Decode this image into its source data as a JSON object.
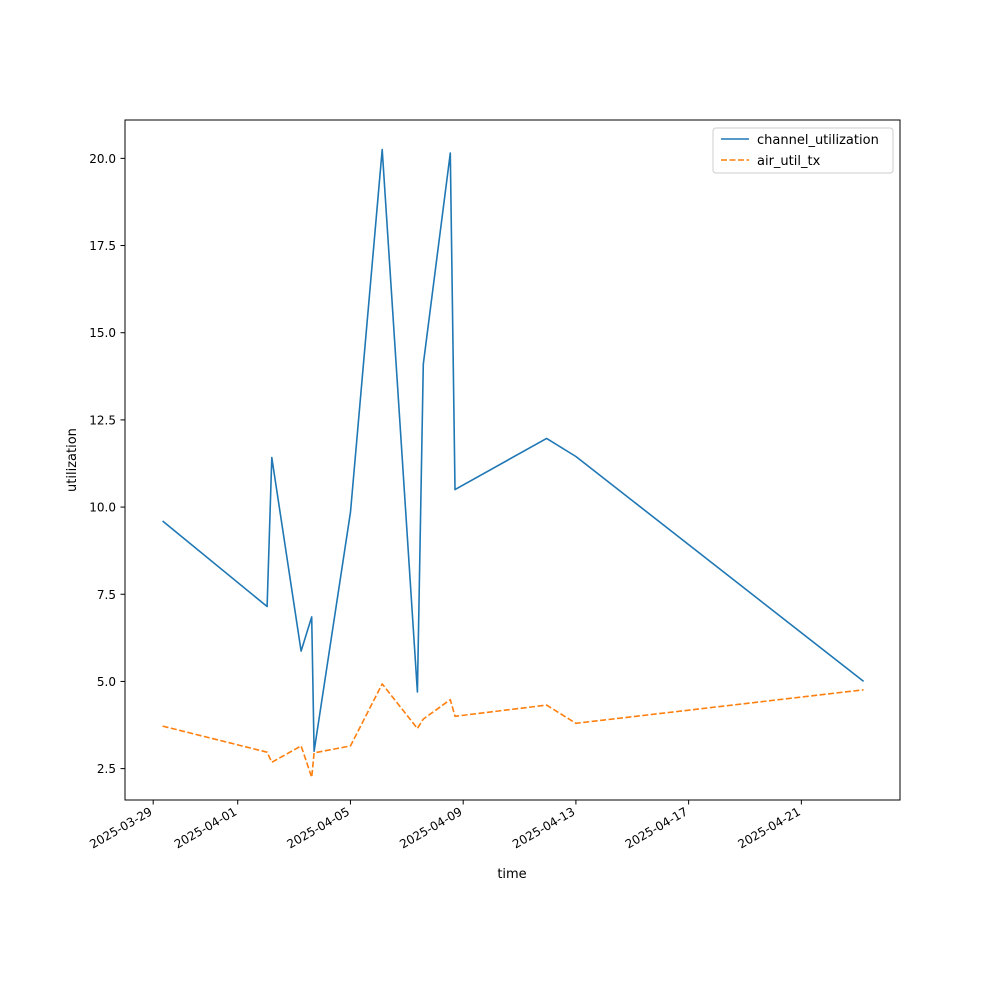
{
  "chart_data": {
    "type": "line",
    "title": "",
    "xlabel": "time",
    "ylabel": "utilization",
    "x_ticks": [
      "2025-03-29",
      "2025-04-01",
      "2025-04-05",
      "2025-04-09",
      "2025-04-13",
      "2025-04-17",
      "2025-04-21"
    ],
    "y_ticks": [
      "2.5",
      "5.0",
      "7.5",
      "10.0",
      "12.5",
      "15.0",
      "17.5",
      "20.0"
    ],
    "xlim": [
      "2025-03-28T00:00",
      "2025-04-24T12:00"
    ],
    "ylim": [
      1.6,
      21.1
    ],
    "grid": false,
    "legend": "top-right",
    "x": [
      "2025-03-29T08:00",
      "2025-04-02T01:00",
      "2025-04-02T05:00",
      "2025-04-03T06:00",
      "2025-04-03T15:00",
      "2025-04-03T17:00",
      "2025-04-05T00:00",
      "2025-04-06T03:00",
      "2025-04-07T09:00",
      "2025-04-07T14:00",
      "2025-04-08T13:00",
      "2025-04-08T17:00",
      "2025-04-11T23:00",
      "2025-04-13T00:00",
      "2025-04-23T05:00"
    ],
    "series": [
      {
        "name": "channel_utilization",
        "color": "#1f77b4",
        "style": "solid",
        "values": [
          9.6,
          7.15,
          11.42,
          5.87,
          6.85,
          3.0,
          9.86,
          20.25,
          4.7,
          14.1,
          20.15,
          10.5,
          11.97,
          11.45,
          5.0
        ]
      },
      {
        "name": "air_util_tx",
        "color": "#ff7f0e",
        "style": "dashed",
        "values": [
          3.72,
          2.97,
          2.68,
          3.15,
          2.25,
          2.95,
          3.15,
          4.93,
          3.65,
          3.92,
          4.48,
          4.0,
          4.32,
          3.8,
          4.76
        ]
      }
    ]
  }
}
